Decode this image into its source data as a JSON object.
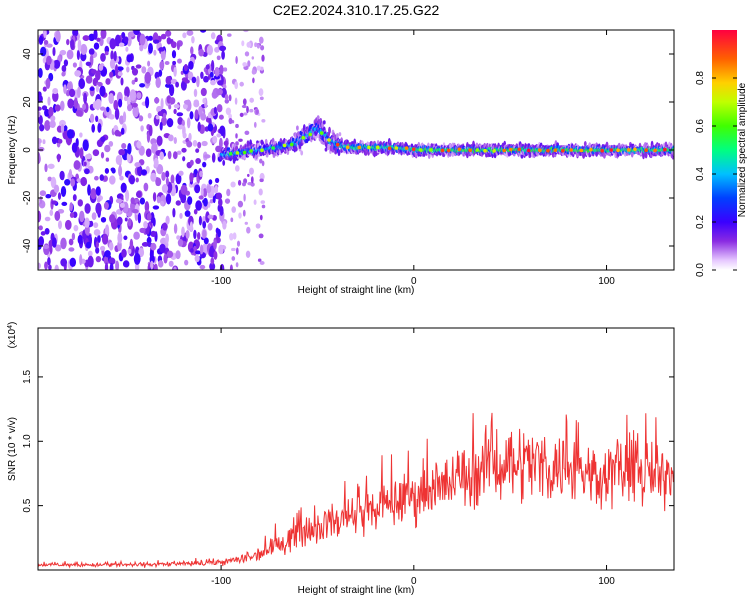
{
  "figure": {
    "title": "C2E2.2024.310.17.25.G22"
  },
  "chart_data": [
    {
      "type": "heatmap",
      "xlabel": "Height of straight line (km)",
      "ylabel": "Frequency (Hz)",
      "xlim": [
        -195,
        135
      ],
      "ylim": [
        -50,
        50
      ],
      "xticks": [
        -100,
        0,
        100
      ],
      "yticks": [
        -40,
        -20,
        0,
        20,
        40
      ],
      "colorbar": {
        "label": "Normalized spectral amplitude",
        "range": [
          0,
          1
        ],
        "ticks": [
          "0.0",
          "0.2",
          "0.4",
          "0.6",
          "0.8"
        ],
        "tick_values": [
          0.0,
          0.2,
          0.4,
          0.6,
          0.8
        ]
      },
      "ridge": {
        "x": [
          -100,
          -90,
          -80,
          -70,
          -62,
          -55,
          -50,
          -45,
          -40,
          -30,
          -20,
          -10,
          0,
          20,
          40,
          60,
          80,
          100,
          120,
          135
        ],
        "y": [
          -2,
          -1,
          0,
          1,
          3,
          6,
          9,
          5,
          2,
          1,
          1,
          1,
          0,
          0,
          0,
          0,
          0,
          0,
          0,
          0
        ]
      }
    },
    {
      "type": "line",
      "xlabel": "Height of straight line (km)",
      "ylabel": "SNR (10 * v/v)",
      "multiplier_label": "(x10",
      "multiplier_exp": "4",
      "multiplier_close": ")",
      "xlim": [
        -195,
        135
      ],
      "ylim": [
        0,
        1.88
      ],
      "xticks": [
        -100,
        0,
        100
      ],
      "yticks": [
        0.5,
        1.0,
        1.5
      ],
      "ytick_labels": [
        "0.5",
        "1.0",
        "1.5"
      ],
      "color": "#ee3333",
      "envelope": {
        "x": [
          -195,
          -150,
          -110,
          -95,
          -85,
          -75,
          -65,
          -55,
          -45,
          -35,
          -25,
          -15,
          -5,
          5,
          15,
          25,
          35,
          45,
          55,
          65,
          75,
          85,
          95,
          105,
          115,
          125,
          135
        ],
        "mean": [
          0.04,
          0.04,
          0.05,
          0.07,
          0.1,
          0.16,
          0.25,
          0.32,
          0.36,
          0.4,
          0.45,
          0.5,
          0.55,
          0.6,
          0.65,
          0.72,
          0.78,
          0.85,
          0.85,
          0.82,
          0.8,
          0.78,
          0.75,
          0.78,
          0.75,
          0.72,
          0.78
        ],
        "amplitude": [
          0.02,
          0.03,
          0.03,
          0.05,
          0.08,
          0.12,
          0.18,
          0.22,
          0.22,
          0.25,
          0.28,
          0.3,
          0.32,
          0.35,
          0.38,
          0.42,
          0.45,
          0.5,
          0.5,
          0.5,
          0.45,
          0.42,
          0.42,
          0.45,
          0.45,
          0.42,
          0.45
        ]
      }
    }
  ]
}
